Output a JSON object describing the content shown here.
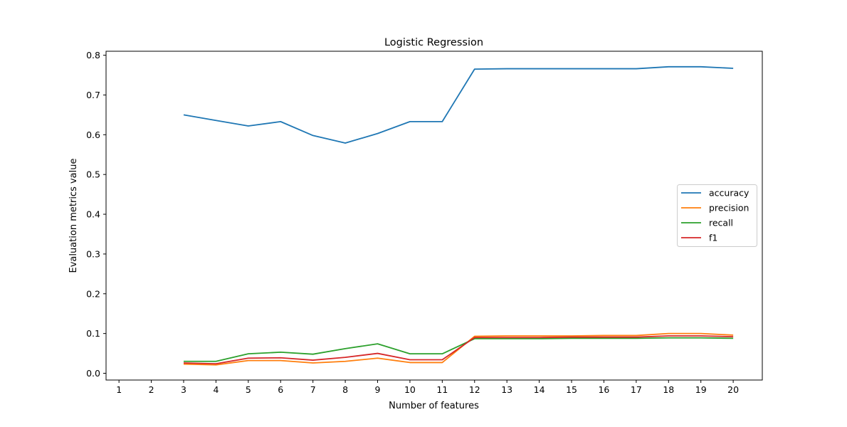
{
  "chart_data": {
    "type": "line",
    "title": "Logistic Regression",
    "xlabel": "Number of features",
    "ylabel": "Evaluation metrics value",
    "xlim": [
      0.6,
      20.9
    ],
    "ylim": [
      -0.017,
      0.81
    ],
    "x_ticks": [
      1,
      2,
      3,
      4,
      5,
      6,
      7,
      8,
      9,
      10,
      11,
      12,
      13,
      14,
      15,
      16,
      17,
      18,
      19,
      20
    ],
    "y_ticks": [
      0.0,
      0.1,
      0.2,
      0.3,
      0.4,
      0.5,
      0.6,
      0.7,
      0.8
    ],
    "y_tick_labels": [
      "0.0",
      "0.1",
      "0.2",
      "0.3",
      "0.4",
      "0.5",
      "0.6",
      "0.7",
      "0.8"
    ],
    "grid": false,
    "legend_position": "center-right",
    "x": [
      3,
      4,
      5,
      6,
      7,
      8,
      9,
      10,
      11,
      12,
      13,
      14,
      15,
      16,
      17,
      18,
      19,
      20
    ],
    "series": [
      {
        "name": "accuracy",
        "color": "#1f77b4",
        "values": [
          0.65,
          0.636,
          0.622,
          0.633,
          0.598,
          0.579,
          0.603,
          0.633,
          0.633,
          0.765,
          0.766,
          0.766,
          0.766,
          0.766,
          0.766,
          0.771,
          0.771,
          0.767
        ]
      },
      {
        "name": "precision",
        "color": "#ff7f0e",
        "values": [
          0.023,
          0.021,
          0.032,
          0.032,
          0.026,
          0.03,
          0.038,
          0.027,
          0.027,
          0.093,
          0.094,
          0.094,
          0.094,
          0.095,
          0.095,
          0.1,
          0.1,
          0.096
        ]
      },
      {
        "name": "recall",
        "color": "#2ca02c",
        "values": [
          0.03,
          0.03,
          0.049,
          0.053,
          0.048,
          0.062,
          0.074,
          0.049,
          0.049,
          0.087,
          0.087,
          0.087,
          0.088,
          0.088,
          0.088,
          0.089,
          0.089,
          0.088
        ]
      },
      {
        "name": "f1",
        "color": "#d62728",
        "values": [
          0.026,
          0.024,
          0.038,
          0.039,
          0.033,
          0.04,
          0.05,
          0.034,
          0.034,
          0.09,
          0.09,
          0.09,
          0.091,
          0.091,
          0.091,
          0.094,
          0.094,
          0.092
        ]
      }
    ]
  }
}
